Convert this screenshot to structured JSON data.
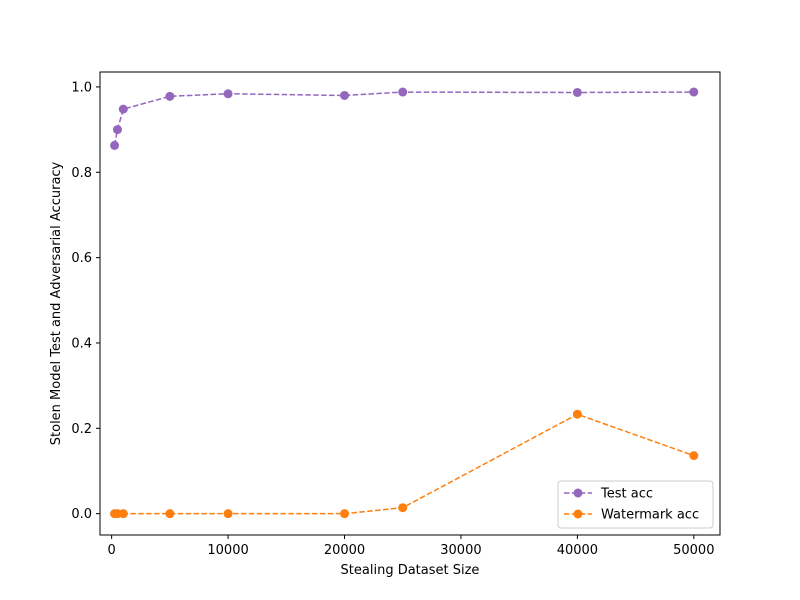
{
  "chart_data": {
    "type": "line",
    "title": "",
    "xlabel": "Stealing Dataset Size",
    "ylabel": "Stolen Model Test and Adversarial Accuracy",
    "xlim": [
      -1000,
      52250
    ],
    "ylim": [
      -0.05,
      1.035
    ],
    "xticks": [
      0,
      10000,
      20000,
      30000,
      40000,
      50000
    ],
    "xtick_labels": [
      "0",
      "10000",
      "20000",
      "30000",
      "40000",
      "50000"
    ],
    "yticks": [
      0.0,
      0.2,
      0.4,
      0.6,
      0.8,
      1.0
    ],
    "ytick_labels": [
      "0.0",
      "0.2",
      "0.4",
      "0.6",
      "0.8",
      "1.0"
    ],
    "grid": false,
    "legend_position": "lower-right",
    "series": [
      {
        "name": "Test acc",
        "color": "#9467bd",
        "line_style": "dashed",
        "marker": "circle",
        "x": [
          250,
          500,
          1000,
          5000,
          10000,
          20000,
          25000,
          40000,
          50000
        ],
        "y": [
          0.863,
          0.9,
          0.948,
          0.978,
          0.984,
          0.98,
          0.988,
          0.987,
          0.988
        ]
      },
      {
        "name": "Watermark acc",
        "color": "#ff7f0e",
        "line_style": "dashed",
        "marker": "circle",
        "x": [
          250,
          500,
          1000,
          5000,
          10000,
          20000,
          25000,
          40000,
          50000
        ],
        "y": [
          0.0,
          0.0,
          0.0,
          0.0,
          0.0,
          0.0,
          0.014,
          0.233,
          0.136
        ]
      }
    ]
  }
}
